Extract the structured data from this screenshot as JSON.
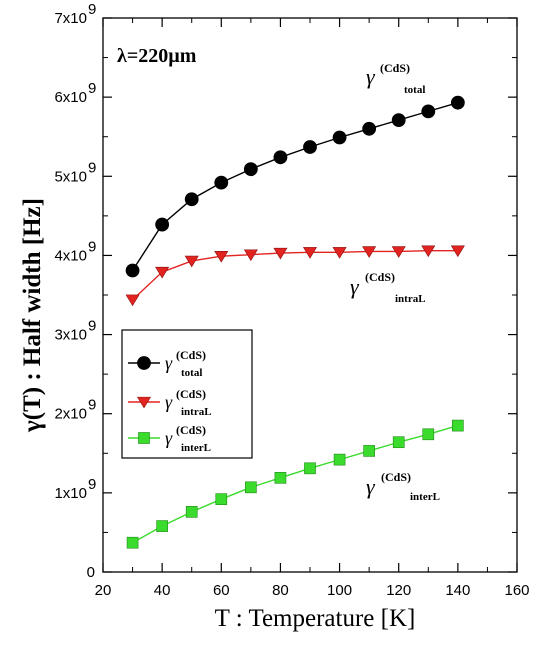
{
  "chart_data": {
    "type": "line",
    "xlabel": "T : Temperature [K]",
    "ylabel": "γ(T) : Half width [Hz]",
    "xlim": [
      20,
      160
    ],
    "ylim": [
      0,
      7000000000
    ],
    "x_ticks": [
      20,
      40,
      60,
      80,
      100,
      120,
      140,
      160
    ],
    "y_ticks": [
      0,
      1000000000,
      2000000000,
      3000000000,
      4000000000,
      5000000000,
      6000000000,
      7000000000
    ],
    "y_tick_labels": [
      "0",
      "1x10",
      "2x10",
      "3x10",
      "4x10",
      "5x10",
      "6x10",
      "7x10"
    ],
    "y_tick_exponent": "9",
    "grid": false,
    "legend_position": "center-left",
    "annotation": "λ=220µm",
    "series": [
      {
        "name": "γ(CdS) total",
        "color": "#000000",
        "marker": "circle",
        "x": [
          30,
          40,
          50,
          60,
          70,
          80,
          90,
          100,
          110,
          120,
          130,
          140
        ],
        "values": [
          3810000000,
          4390000000,
          4710000000,
          4920000000,
          5090000000,
          5240000000,
          5370000000,
          5490000000,
          5600000000,
          5710000000,
          5820000000,
          5930000000
        ]
      },
      {
        "name": "γ(CdS) intraL",
        "color": "#e32320",
        "marker": "triangle-down",
        "x": [
          30,
          40,
          50,
          60,
          70,
          80,
          90,
          100,
          110,
          120,
          130,
          140
        ],
        "values": [
          3440000000,
          3790000000,
          3930000000,
          3990000000,
          4010000000,
          4030000000,
          4040000000,
          4040000000,
          4050000000,
          4050000000,
          4060000000,
          4060000000
        ]
      },
      {
        "name": "γ(CdS) interL",
        "color": "#3adb2c",
        "marker": "square",
        "x": [
          30,
          40,
          50,
          60,
          70,
          80,
          90,
          100,
          110,
          120,
          130,
          140
        ],
        "values": [
          370000000,
          580000000,
          760000000,
          920000000,
          1070000000,
          1190000000,
          1310000000,
          1420000000,
          1530000000,
          1640000000,
          1740000000,
          1850000000
        ]
      }
    ],
    "labels": {
      "gamma": "γ",
      "cds": "(CdS)",
      "total": "total",
      "intraL": "intraL",
      "interL": "interL"
    }
  }
}
